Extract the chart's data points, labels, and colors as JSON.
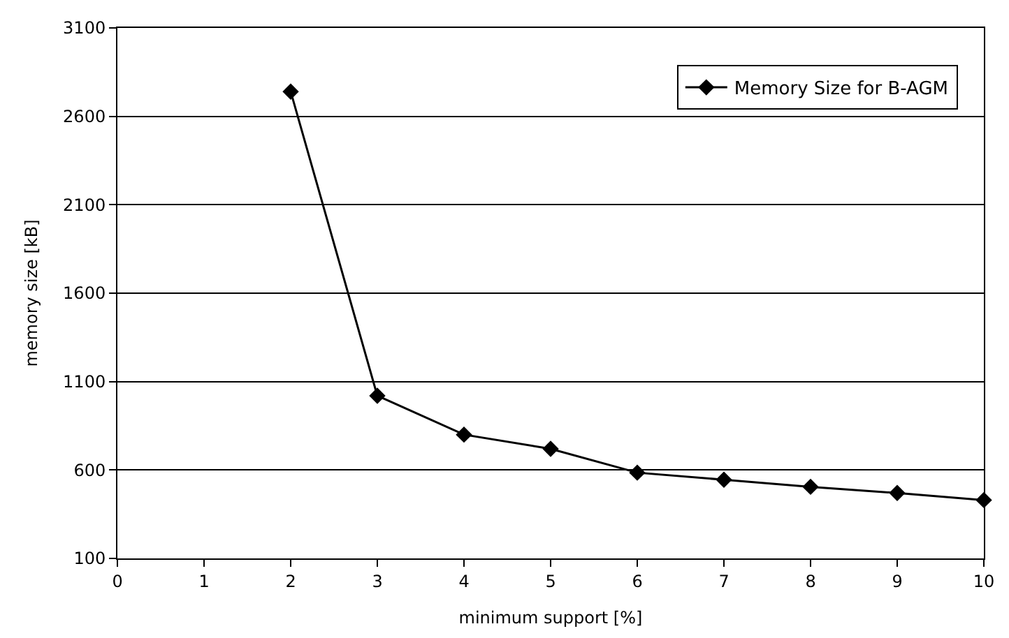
{
  "chart_data": {
    "type": "line",
    "xlabel": "minimum support [%]",
    "ylabel": "memory size [kB]",
    "x": [
      2,
      3,
      4,
      5,
      6,
      7,
      8,
      9,
      10
    ],
    "series": [
      {
        "name": "Memory Size for B-AGM",
        "color": "#000000",
        "values": [
          2740,
          1020,
          800,
          720,
          585,
          545,
          505,
          470,
          430
        ]
      }
    ],
    "xlim": [
      0,
      10
    ],
    "xticks": [
      0,
      1,
      2,
      3,
      4,
      5,
      6,
      7,
      8,
      9,
      10
    ],
    "ylim": [
      100,
      3100
    ],
    "yticks": [
      100,
      600,
      1100,
      1600,
      2100,
      2600,
      3100
    ],
    "grid": "y",
    "legend": "top right",
    "marker": "diamond",
    "line_style": "solid"
  }
}
